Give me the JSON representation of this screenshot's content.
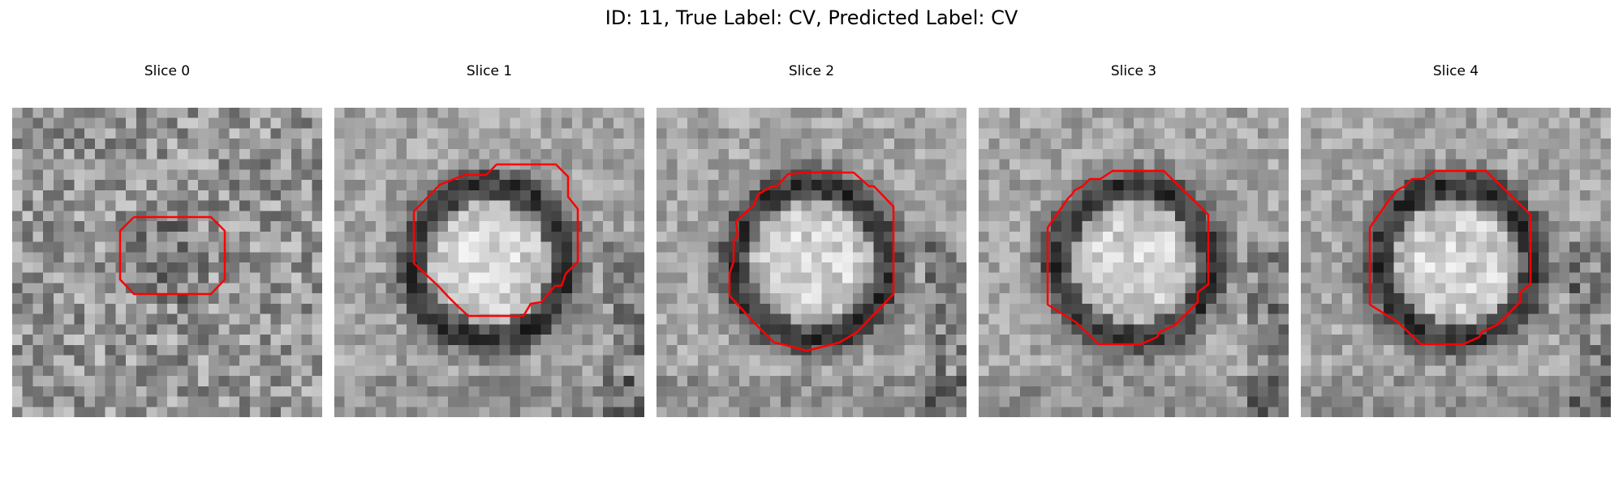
{
  "title": "ID: 11, True Label: CV, Predicted Label: CV",
  "slices": [
    {
      "label": "Slice 0",
      "contour_color": "#ff0000"
    },
    {
      "label": "Slice 1",
      "contour_color": "#ff0000"
    },
    {
      "label": "Slice 2",
      "contour_color": "#ff0000"
    },
    {
      "label": "Slice 3",
      "contour_color": "#ff0000"
    },
    {
      "label": "Slice 4",
      "contour_color": "#ff0000"
    }
  ]
}
